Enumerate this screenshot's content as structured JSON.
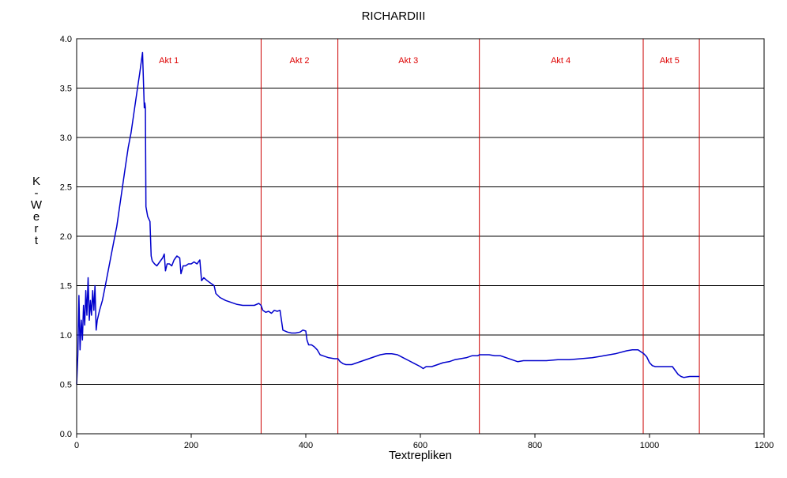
{
  "colors": {
    "line": "#0000cc",
    "act_divider": "#cc0000",
    "act_label": "#dd0000",
    "grid": "#000000",
    "frame": "#000000"
  },
  "chart_data": {
    "type": "line",
    "title": "RICHARDIII",
    "xlabel": "Textrepliken",
    "ylabel": "K-Wert",
    "xlim": [
      0,
      1200
    ],
    "ylim": [
      0,
      4.0
    ],
    "x_ticks": [
      "0",
      "200",
      "400",
      "600",
      "800",
      "1000",
      "1200"
    ],
    "y_ticks": [
      "0.0",
      "0.5",
      "1.0",
      "1.5",
      "2.0",
      "2.5",
      "3.0",
      "3.5",
      "4.0"
    ],
    "grid": "horizontal",
    "act_dividers": [
      322,
      456,
      703,
      989,
      1087
    ],
    "acts": [
      {
        "label": "Akt 1",
        "x": 161
      },
      {
        "label": "Akt 2",
        "x": 389
      },
      {
        "label": "Akt 3",
        "x": 579
      },
      {
        "label": "Akt 4",
        "x": 845
      },
      {
        "label": "Akt 5",
        "x": 1035
      }
    ],
    "series": [
      {
        "points": [
          [
            0,
            0.5
          ],
          [
            2,
            0.8
          ],
          [
            4,
            1.4
          ],
          [
            6,
            0.85
          ],
          [
            8,
            1.15
          ],
          [
            10,
            0.95
          ],
          [
            12,
            1.3
          ],
          [
            14,
            1.1
          ],
          [
            16,
            1.45
          ],
          [
            18,
            1.2
          ],
          [
            20,
            1.58
          ],
          [
            22,
            1.15
          ],
          [
            24,
            1.35
          ],
          [
            26,
            1.2
          ],
          [
            28,
            1.45
          ],
          [
            30,
            1.25
          ],
          [
            32,
            1.5
          ],
          [
            34,
            1.05
          ],
          [
            36,
            1.15
          ],
          [
            40,
            1.25
          ],
          [
            45,
            1.35
          ],
          [
            50,
            1.5
          ],
          [
            55,
            1.65
          ],
          [
            60,
            1.8
          ],
          [
            65,
            1.95
          ],
          [
            70,
            2.1
          ],
          [
            75,
            2.3
          ],
          [
            80,
            2.5
          ],
          [
            85,
            2.7
          ],
          [
            90,
            2.9
          ],
          [
            95,
            3.05
          ],
          [
            100,
            3.25
          ],
          [
            105,
            3.45
          ],
          [
            110,
            3.65
          ],
          [
            115,
            3.86
          ],
          [
            118,
            3.3
          ],
          [
            119,
            3.35
          ],
          [
            120,
            3.3
          ],
          [
            121,
            2.3
          ],
          [
            124,
            2.2
          ],
          [
            128,
            2.15
          ],
          [
            130,
            1.8
          ],
          [
            132,
            1.75
          ],
          [
            136,
            1.72
          ],
          [
            140,
            1.7
          ],
          [
            145,
            1.74
          ],
          [
            150,
            1.78
          ],
          [
            153,
            1.82
          ],
          [
            155,
            1.65
          ],
          [
            158,
            1.72
          ],
          [
            162,
            1.72
          ],
          [
            166,
            1.7
          ],
          [
            170,
            1.76
          ],
          [
            175,
            1.8
          ],
          [
            180,
            1.78
          ],
          [
            182,
            1.62
          ],
          [
            186,
            1.7
          ],
          [
            190,
            1.7
          ],
          [
            195,
            1.72
          ],
          [
            200,
            1.72
          ],
          [
            205,
            1.74
          ],
          [
            210,
            1.72
          ],
          [
            215,
            1.76
          ],
          [
            218,
            1.55
          ],
          [
            222,
            1.58
          ],
          [
            228,
            1.55
          ],
          [
            235,
            1.52
          ],
          [
            240,
            1.5
          ],
          [
            243,
            1.42
          ],
          [
            250,
            1.38
          ],
          [
            260,
            1.35
          ],
          [
            270,
            1.33
          ],
          [
            280,
            1.31
          ],
          [
            290,
            1.3
          ],
          [
            300,
            1.3
          ],
          [
            310,
            1.3
          ],
          [
            318,
            1.32
          ],
          [
            322,
            1.3
          ],
          [
            325,
            1.25
          ],
          [
            330,
            1.23
          ],
          [
            335,
            1.24
          ],
          [
            340,
            1.22
          ],
          [
            345,
            1.25
          ],
          [
            350,
            1.24
          ],
          [
            355,
            1.25
          ],
          [
            360,
            1.05
          ],
          [
            368,
            1.03
          ],
          [
            375,
            1.02
          ],
          [
            382,
            1.02
          ],
          [
            390,
            1.03
          ],
          [
            395,
            1.05
          ],
          [
            400,
            1.04
          ],
          [
            402,
            0.95
          ],
          [
            405,
            0.9
          ],
          [
            410,
            0.9
          ],
          [
            415,
            0.88
          ],
          [
            420,
            0.85
          ],
          [
            425,
            0.8
          ],
          [
            430,
            0.79
          ],
          [
            440,
            0.77
          ],
          [
            450,
            0.76
          ],
          [
            456,
            0.76
          ],
          [
            460,
            0.73
          ],
          [
            465,
            0.71
          ],
          [
            470,
            0.7
          ],
          [
            480,
            0.7
          ],
          [
            490,
            0.72
          ],
          [
            500,
            0.74
          ],
          [
            510,
            0.76
          ],
          [
            520,
            0.78
          ],
          [
            530,
            0.8
          ],
          [
            540,
            0.81
          ],
          [
            550,
            0.81
          ],
          [
            560,
            0.8
          ],
          [
            570,
            0.77
          ],
          [
            580,
            0.74
          ],
          [
            590,
            0.71
          ],
          [
            600,
            0.68
          ],
          [
            605,
            0.66
          ],
          [
            610,
            0.68
          ],
          [
            620,
            0.68
          ],
          [
            630,
            0.7
          ],
          [
            640,
            0.72
          ],
          [
            650,
            0.73
          ],
          [
            660,
            0.75
          ],
          [
            670,
            0.76
          ],
          [
            680,
            0.77
          ],
          [
            690,
            0.79
          ],
          [
            700,
            0.79
          ],
          [
            703,
            0.8
          ],
          [
            710,
            0.8
          ],
          [
            720,
            0.8
          ],
          [
            730,
            0.79
          ],
          [
            740,
            0.79
          ],
          [
            750,
            0.77
          ],
          [
            760,
            0.75
          ],
          [
            770,
            0.73
          ],
          [
            780,
            0.74
          ],
          [
            790,
            0.74
          ],
          [
            800,
            0.74
          ],
          [
            820,
            0.74
          ],
          [
            840,
            0.75
          ],
          [
            860,
            0.75
          ],
          [
            880,
            0.76
          ],
          [
            900,
            0.77
          ],
          [
            920,
            0.79
          ],
          [
            940,
            0.81
          ],
          [
            960,
            0.84
          ],
          [
            970,
            0.85
          ],
          [
            980,
            0.85
          ],
          [
            985,
            0.83
          ],
          [
            990,
            0.81
          ],
          [
            995,
            0.78
          ],
          [
            1000,
            0.72
          ],
          [
            1005,
            0.69
          ],
          [
            1010,
            0.68
          ],
          [
            1020,
            0.68
          ],
          [
            1030,
            0.68
          ],
          [
            1040,
            0.68
          ],
          [
            1045,
            0.64
          ],
          [
            1050,
            0.6
          ],
          [
            1055,
            0.58
          ],
          [
            1060,
            0.57
          ],
          [
            1070,
            0.58
          ],
          [
            1080,
            0.58
          ],
          [
            1087,
            0.58
          ]
        ]
      }
    ]
  }
}
